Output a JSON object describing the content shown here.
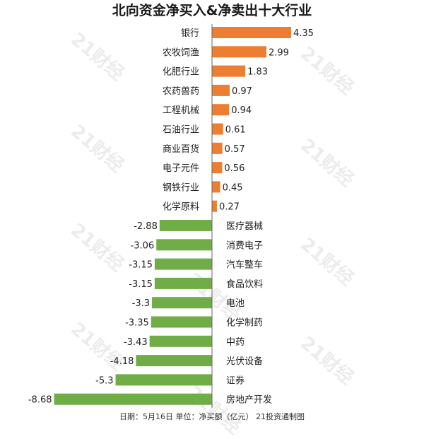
{
  "title": "北向资金净买入&净卖出十大行业",
  "footer": "日期：5月16日 单位：净买额（亿元） 21投资通制图",
  "watermark": "21财经",
  "colors": {
    "positive": "#ED7D31",
    "negative": "#70AD47",
    "axis": "#666666"
  },
  "chart_data": {
    "type": "bar",
    "orientation": "horizontal",
    "title": "北向资金净买入&净卖出十大行业",
    "xlim": [
      -8.68,
      4.35
    ],
    "grid": false,
    "bars": [
      {
        "category": "银行",
        "value": 4.35,
        "label": "4.35"
      },
      {
        "category": "农牧饲渔",
        "value": 2.99,
        "label": "2.99"
      },
      {
        "category": "化肥行业",
        "value": 1.83,
        "label": "1.83"
      },
      {
        "category": "农药兽药",
        "value": 0.97,
        "label": "0.97"
      },
      {
        "category": "工程机械",
        "value": 0.94,
        "label": "0.94"
      },
      {
        "category": "石油行业",
        "value": 0.61,
        "label": "0.61"
      },
      {
        "category": "商业百货",
        "value": 0.57,
        "label": "0.57"
      },
      {
        "category": "电子元件",
        "value": 0.56,
        "label": "0.56"
      },
      {
        "category": "钢铁行业",
        "value": 0.45,
        "label": "0.45"
      },
      {
        "category": "化学原料",
        "value": 0.27,
        "label": "0.27"
      },
      {
        "category": "医疗器械",
        "value": -2.88,
        "label": "-2.88"
      },
      {
        "category": "消费电子",
        "value": -3.06,
        "label": "-3.06"
      },
      {
        "category": "汽车整车",
        "value": -3.15,
        "label": "-3.15"
      },
      {
        "category": "食品饮料",
        "value": -3.15,
        "label": "-3.15"
      },
      {
        "category": "电池",
        "value": -3.3,
        "label": "-3.3"
      },
      {
        "category": "化学制药",
        "value": -3.35,
        "label": "-3.35"
      },
      {
        "category": "中药",
        "value": -3.43,
        "label": "-3.43"
      },
      {
        "category": "光伏设备",
        "value": -4.18,
        "label": "-4.18"
      },
      {
        "category": "证券",
        "value": -5.3,
        "label": "-5.3"
      },
      {
        "category": "房地产开发",
        "value": -8.68,
        "label": "-8.68"
      }
    ]
  }
}
